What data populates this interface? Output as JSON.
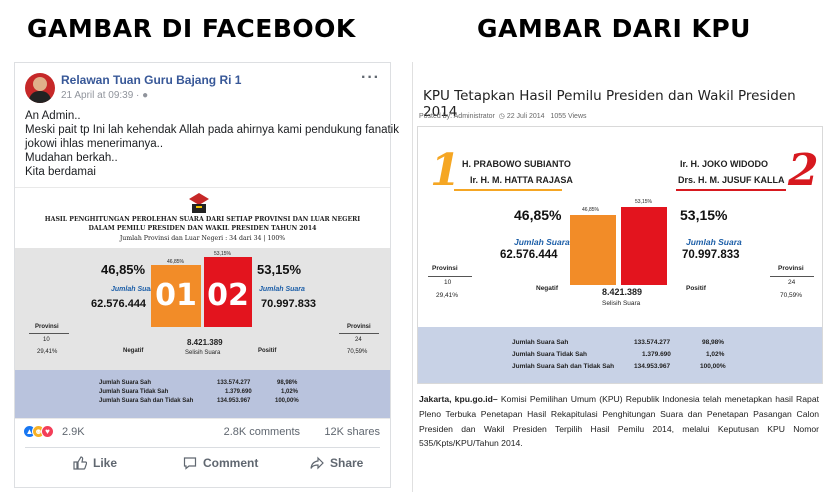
{
  "headings": {
    "left": "GAMBAR DI FACEBOOK",
    "right": "GAMBAR DARI KPU"
  },
  "facebook": {
    "page_name": "Relawan Tuan Guru Bajang Ri 1",
    "timestamp": "21 April at 09:39 ·",
    "post_lines": [
      "An Admin..",
      "Meski pait tp Ini lah kehendak Allah pada ahirnya kami pendukung fanatik",
      "jokowi ihlas menerimanya..",
      "Mudahan berkah..",
      "Kita berdamai"
    ],
    "image": {
      "title_1": "HASIL PENGHITUNGAN PEROLEHAN SUARA DARI SETIAP PROVINSI DAN LUAR NEGERI",
      "title_2": "DALAM PEMILU PRESIDEN DAN WAKIL PRESIDEN TAHUN 2014",
      "title_3": "Jumlah Provinsi dan Luar Negeri : 34 dari 34 | 100%",
      "left_pct": "46,85%",
      "right_pct": "53,15%",
      "bar_left_pct": "46,85%",
      "bar_right_pct": "53,15%",
      "jumlah_label": "Jumlah Suara",
      "left_votes": "62.576.444",
      "right_votes": "70.997.833",
      "bar_left_num": "01",
      "bar_right_num": "02",
      "provinsi_label": "Provinsi",
      "left_prov": "10",
      "left_prov_pct": "29,41%",
      "right_prov": "24",
      "right_prov_pct": "70,59%",
      "negatif": "Negatif",
      "positif": "Positif",
      "selisih_value": "8.421.389",
      "selisih_label": "Selisih Suara",
      "summary": [
        {
          "label": "Jumlah Suara Sah",
          "value": "133.574.277",
          "pct": "98,98%"
        },
        {
          "label": "Jumlah Suara Tidak Sah",
          "value": "1.379.690",
          "pct": "1,02%"
        },
        {
          "label": "Jumlah Suara Sah dan Tidak Sah",
          "value": "134.953.967",
          "pct": "100,00%"
        }
      ]
    },
    "reaction_count": "2.9K",
    "comments": "2.8K comments",
    "shares": "12K shares",
    "actions": {
      "like": "Like",
      "comment": "Comment",
      "share": "Share"
    }
  },
  "kpu": {
    "title": "KPU Tetapkan Hasil Pemilu Presiden dan Wakil Presiden 2014",
    "meta_posted": "Posted by: Administrator",
    "meta_date": "22 Juli 2014",
    "meta_views": "1055 Views",
    "image": {
      "num_left": "1",
      "num_right": "2",
      "cand1_a": "H. PRABOWO SUBIANTO",
      "cand1_b": "Ir. H. M. HATTA RAJASA",
      "cand2_a": "Ir. H. JOKO WIDODO",
      "cand2_b": "Drs. H. M. JUSUF KALLA",
      "left_pct": "46,85%",
      "right_pct": "53,15%",
      "bar_left_pct": "46,85%",
      "bar_right_pct": "53,15%",
      "jumlah_label": "Jumlah Suara",
      "left_votes": "62.576.444",
      "right_votes": "70.997.833",
      "provinsi_label": "Provinsi",
      "left_prov": "10",
      "left_prov_pct": "29,41%",
      "right_prov": "24",
      "right_prov_pct": "70,59%",
      "negatif": "Negatif",
      "positif": "Positif",
      "selisih_value": "8.421.389",
      "selisih_label": "Selisih Suara",
      "summary": [
        {
          "label": "Jumlah Suara Sah",
          "value": "133.574.277",
          "pct": "98,98%"
        },
        {
          "label": "Jumlah Suara Tidak Sah",
          "value": "1.379.690",
          "pct": "1,02%"
        },
        {
          "label": "Jumlah Suara Sah dan Tidak Sah",
          "value": "134.953.967",
          "pct": "100,00%"
        }
      ]
    },
    "article_lead": "Jakarta, kpu.go.id–",
    "article_body": " Komisi Pemilihan Umum (KPU) Republik Indonesia telah menetapkan hasil Rapat Pleno Terbuka Penetapan Hasil Rekapitulasi Penghitungan Suara dan Penetapan Pasangan Calon Presiden dan Wakil Presiden Terpilih Hasil Pemilu 2014, melalui Keputusan KPU Nomor 535/Kpts/KPU/Tahun 2014."
  },
  "colors": {
    "orange": "#f28c28",
    "red": "#e3141e",
    "fb_blue": "#385898",
    "number_orange": "#f5a623",
    "number_red": "#d7191f"
  }
}
